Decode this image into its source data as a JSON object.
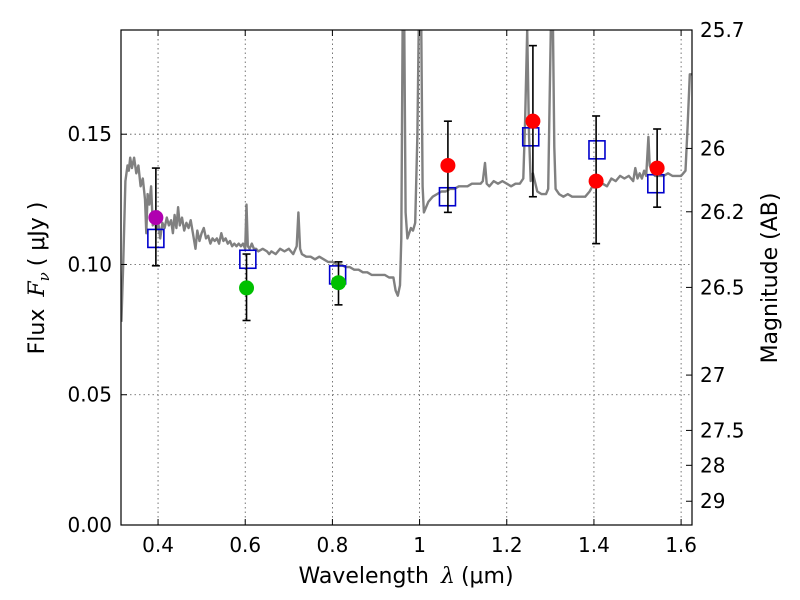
{
  "chart_data": {
    "type": "scatter",
    "xlabel_text": "Wavelength",
    "xlabel_symbol": "λ",
    "xlabel_unit": "(μm)",
    "ylabel_text": "Flux",
    "ylabel_symbol": "F",
    "ylabel_sub": "ν",
    "ylabel_unit": "( μJy )",
    "y2label": "Magnitude (AB)",
    "xlim": [
      0.315,
      1.625
    ],
    "ylim": [
      0.0,
      0.19
    ],
    "grid": true,
    "x_ticks": [
      0.4,
      0.6,
      0.8,
      1.0,
      1.2,
      1.4,
      1.6
    ],
    "x_tick_labels": [
      "0.4",
      "0.6",
      "0.8",
      "1",
      "1.2",
      "1.4",
      "1.6"
    ],
    "y_ticks": [
      0.0,
      0.05,
      0.1,
      0.15
    ],
    "y_tick_labels": [
      "0.00",
      "0.05",
      "0.10",
      "0.15"
    ],
    "mag_ticks": [
      {
        "mag": 25.7,
        "label": "25.7"
      },
      {
        "mag": 26,
        "label": "26"
      },
      {
        "mag": 26.2,
        "label": "26.2"
      },
      {
        "mag": 26.5,
        "label": "26.5"
      },
      {
        "mag": 27,
        "label": "27"
      },
      {
        "mag": 27.5,
        "label": "27.5"
      },
      {
        "mag": 28,
        "label": "28"
      },
      {
        "mag": 29,
        "label": "29"
      }
    ],
    "observed": [
      {
        "name": "violet-band",
        "x": 0.395,
        "y": 0.118,
        "yerr_low": 0.0995,
        "yerr_high": 0.137,
        "color": "#b000b0"
      },
      {
        "name": "green-band-1",
        "x": 0.603,
        "y": 0.091,
        "yerr_low": 0.0785,
        "yerr_high": 0.104,
        "color": "#00c000"
      },
      {
        "name": "green-band-2",
        "x": 0.814,
        "y": 0.093,
        "yerr_low": 0.0845,
        "yerr_high": 0.101,
        "color": "#00c000"
      },
      {
        "name": "red-band-1",
        "x": 1.065,
        "y": 0.138,
        "yerr_low": 0.12,
        "yerr_high": 0.155,
        "color": "#ff0000"
      },
      {
        "name": "red-band-2",
        "x": 1.26,
        "y": 0.155,
        "yerr_low": 0.126,
        "yerr_high": 0.184,
        "color": "#ff0000"
      },
      {
        "name": "red-band-3",
        "x": 1.405,
        "y": 0.132,
        "yerr_low": 0.108,
        "yerr_high": 0.157,
        "color": "#ff0000"
      },
      {
        "name": "red-band-4",
        "x": 1.545,
        "y": 0.137,
        "yerr_low": 0.122,
        "yerr_high": 0.152,
        "color": "#ff0000"
      }
    ],
    "model_photometry": [
      {
        "x": 0.395,
        "y": 0.11
      },
      {
        "x": 0.606,
        "y": 0.102
      },
      {
        "x": 0.812,
        "y": 0.096
      },
      {
        "x": 1.064,
        "y": 0.126
      },
      {
        "x": 1.255,
        "y": 0.149
      },
      {
        "x": 1.407,
        "y": 0.144
      },
      {
        "x": 1.542,
        "y": 0.131
      }
    ],
    "model_spectrum": [
      [
        0.316,
        0.078
      ],
      [
        0.32,
        0.1
      ],
      [
        0.325,
        0.132
      ],
      [
        0.33,
        0.138
      ],
      [
        0.333,
        0.136
      ],
      [
        0.336,
        0.141
      ],
      [
        0.34,
        0.137
      ],
      [
        0.345,
        0.141
      ],
      [
        0.35,
        0.135
      ],
      [
        0.355,
        0.138
      ],
      [
        0.36,
        0.13
      ],
      [
        0.365,
        0.133
      ],
      [
        0.37,
        0.125
      ],
      [
        0.373,
        0.112
      ],
      [
        0.376,
        0.127
      ],
      [
        0.38,
        0.123
      ],
      [
        0.384,
        0.13
      ],
      [
        0.388,
        0.115
      ],
      [
        0.392,
        0.118
      ],
      [
        0.396,
        0.113
      ],
      [
        0.4,
        0.117
      ],
      [
        0.405,
        0.11
      ],
      [
        0.41,
        0.116
      ],
      [
        0.415,
        0.114
      ],
      [
        0.42,
        0.118
      ],
      [
        0.425,
        0.115
      ],
      [
        0.43,
        0.117
      ],
      [
        0.434,
        0.112
      ],
      [
        0.438,
        0.119
      ],
      [
        0.442,
        0.114
      ],
      [
        0.446,
        0.122
      ],
      [
        0.45,
        0.115
      ],
      [
        0.455,
        0.118
      ],
      [
        0.46,
        0.113
      ],
      [
        0.465,
        0.116
      ],
      [
        0.47,
        0.114
      ],
      [
        0.475,
        0.117
      ],
      [
        0.48,
        0.112
      ],
      [
        0.486,
        0.106
      ],
      [
        0.49,
        0.113
      ],
      [
        0.495,
        0.109
      ],
      [
        0.5,
        0.112
      ],
      [
        0.505,
        0.114
      ],
      [
        0.51,
        0.11
      ],
      [
        0.515,
        0.111
      ],
      [
        0.52,
        0.108
      ],
      [
        0.525,
        0.11
      ],
      [
        0.53,
        0.109
      ],
      [
        0.535,
        0.11
      ],
      [
        0.54,
        0.108
      ],
      [
        0.545,
        0.112
      ],
      [
        0.55,
        0.109
      ],
      [
        0.555,
        0.11
      ],
      [
        0.56,
        0.108
      ],
      [
        0.565,
        0.109
      ],
      [
        0.57,
        0.107
      ],
      [
        0.575,
        0.108
      ],
      [
        0.58,
        0.107
      ],
      [
        0.585,
        0.108
      ],
      [
        0.59,
        0.107
      ],
      [
        0.595,
        0.108
      ],
      [
        0.6,
        0.106
      ],
      [
        0.603,
        0.123
      ],
      [
        0.606,
        0.107
      ],
      [
        0.61,
        0.106
      ],
      [
        0.615,
        0.108
      ],
      [
        0.62,
        0.106
      ],
      [
        0.625,
        0.106
      ],
      [
        0.63,
        0.105
      ],
      [
        0.64,
        0.106
      ],
      [
        0.65,
        0.105
      ],
      [
        0.655,
        0.104
      ],
      [
        0.66,
        0.105
      ],
      [
        0.67,
        0.104
      ],
      [
        0.68,
        0.106
      ],
      [
        0.69,
        0.105
      ],
      [
        0.7,
        0.106
      ],
      [
        0.71,
        0.104
      ],
      [
        0.718,
        0.107
      ],
      [
        0.722,
        0.12
      ],
      [
        0.726,
        0.106
      ],
      [
        0.73,
        0.104
      ],
      [
        0.74,
        0.103
      ],
      [
        0.75,
        0.103
      ],
      [
        0.76,
        0.102
      ],
      [
        0.77,
        0.103
      ],
      [
        0.78,
        0.102
      ],
      [
        0.79,
        0.101
      ],
      [
        0.8,
        0.101
      ],
      [
        0.81,
        0.1
      ],
      [
        0.82,
        0.1
      ],
      [
        0.83,
        0.099
      ],
      [
        0.84,
        0.099
      ],
      [
        0.85,
        0.098
      ],
      [
        0.86,
        0.098
      ],
      [
        0.87,
        0.097
      ],
      [
        0.88,
        0.097
      ],
      [
        0.89,
        0.096
      ],
      [
        0.9,
        0.096
      ],
      [
        0.91,
        0.096
      ],
      [
        0.92,
        0.096
      ],
      [
        0.93,
        0.095
      ],
      [
        0.94,
        0.095
      ],
      [
        0.945,
        0.09
      ],
      [
        0.95,
        0.088
      ],
      [
        0.955,
        0.092
      ],
      [
        0.958,
        0.11
      ],
      [
        0.961,
        0.19
      ],
      [
        0.965,
        0.19
      ],
      [
        0.968,
        0.12
      ],
      [
        0.972,
        0.11
      ],
      [
        0.976,
        0.112
      ],
      [
        0.98,
        0.114
      ],
      [
        0.985,
        0.113
      ],
      [
        0.99,
        0.116
      ],
      [
        0.995,
        0.15
      ],
      [
        0.998,
        0.19
      ],
      [
        1.004,
        0.19
      ],
      [
        1.007,
        0.13
      ],
      [
        1.01,
        0.12
      ],
      [
        1.015,
        0.122
      ],
      [
        1.02,
        0.124
      ],
      [
        1.03,
        0.126
      ],
      [
        1.04,
        0.127
      ],
      [
        1.05,
        0.128
      ],
      [
        1.06,
        0.128
      ],
      [
        1.07,
        0.129
      ],
      [
        1.08,
        0.129
      ],
      [
        1.09,
        0.13
      ],
      [
        1.1,
        0.13
      ],
      [
        1.11,
        0.13
      ],
      [
        1.12,
        0.131
      ],
      [
        1.13,
        0.131
      ],
      [
        1.14,
        0.131
      ],
      [
        1.145,
        0.132
      ],
      [
        1.15,
        0.139
      ],
      [
        1.154,
        0.131
      ],
      [
        1.16,
        0.13
      ],
      [
        1.17,
        0.132
      ],
      [
        1.18,
        0.131
      ],
      [
        1.19,
        0.132
      ],
      [
        1.2,
        0.131
      ],
      [
        1.21,
        0.13
      ],
      [
        1.22,
        0.131
      ],
      [
        1.23,
        0.131
      ],
      [
        1.238,
        0.133
      ],
      [
        1.242,
        0.155
      ],
      [
        1.247,
        0.19
      ],
      [
        1.251,
        0.15
      ],
      [
        1.255,
        0.132
      ],
      [
        1.26,
        0.135
      ],
      [
        1.27,
        0.128
      ],
      [
        1.28,
        0.127
      ],
      [
        1.29,
        0.127
      ],
      [
        1.295,
        0.129
      ],
      [
        1.298,
        0.16
      ],
      [
        1.301,
        0.19
      ],
      [
        1.306,
        0.19
      ],
      [
        1.309,
        0.145
      ],
      [
        1.312,
        0.129
      ],
      [
        1.32,
        0.127
      ],
      [
        1.33,
        0.126
      ],
      [
        1.34,
        0.127
      ],
      [
        1.35,
        0.126
      ],
      [
        1.36,
        0.126
      ],
      [
        1.37,
        0.126
      ],
      [
        1.38,
        0.126
      ],
      [
        1.39,
        0.128
      ],
      [
        1.4,
        0.131
      ],
      [
        1.41,
        0.13
      ],
      [
        1.42,
        0.131
      ],
      [
        1.43,
        0.13
      ],
      [
        1.44,
        0.133
      ],
      [
        1.45,
        0.132
      ],
      [
        1.46,
        0.134
      ],
      [
        1.47,
        0.133
      ],
      [
        1.48,
        0.134
      ],
      [
        1.49,
        0.132
      ],
      [
        1.495,
        0.137
      ],
      [
        1.5,
        0.133
      ],
      [
        1.505,
        0.135
      ],
      [
        1.51,
        0.133
      ],
      [
        1.515,
        0.136
      ],
      [
        1.52,
        0.134
      ],
      [
        1.525,
        0.149
      ],
      [
        1.528,
        0.138
      ],
      [
        1.535,
        0.135
      ],
      [
        1.54,
        0.134
      ],
      [
        1.55,
        0.134
      ],
      [
        1.56,
        0.134
      ],
      [
        1.57,
        0.135
      ],
      [
        1.58,
        0.134
      ],
      [
        1.59,
        0.134
      ],
      [
        1.6,
        0.134
      ],
      [
        1.605,
        0.135
      ],
      [
        1.61,
        0.136
      ],
      [
        1.615,
        0.153
      ],
      [
        1.62,
        0.173
      ],
      [
        1.625,
        0.173
      ]
    ]
  }
}
